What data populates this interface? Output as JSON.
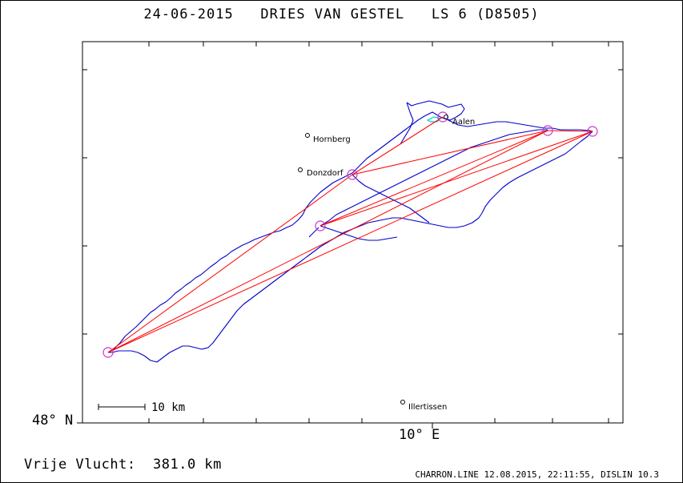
{
  "header": {
    "title": "24-06-2015   DRIES VAN GESTEL   LS 6 (D8505)"
  },
  "map": {
    "lat_label": "48° N",
    "lon_label": "10° E",
    "scale_label": "10 km",
    "towns": [
      {
        "name": "Aalen"
      },
      {
        "name": "Hornberg"
      },
      {
        "name": "Donzdorf"
      },
      {
        "name": "Illertissen"
      }
    ],
    "colors": {
      "track": "#0000cc",
      "task": "#ff0000",
      "turnpoint": "#cc33cc",
      "start": "#00cccc"
    }
  },
  "footer": {
    "flight_distance": "Vrije Vlucht:  381.0 km",
    "software": "CHARRON.LINE 12.08.2015, 22:11:55, DISLIN 10.3"
  }
}
